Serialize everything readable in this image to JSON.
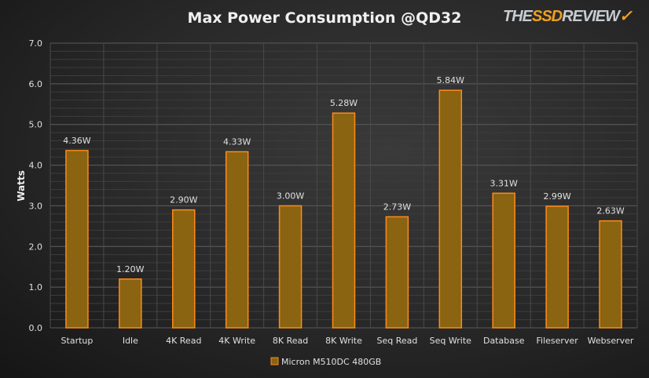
{
  "chart_data": {
    "type": "bar",
    "title": "Max Power Consumption @QD32",
    "ylabel": "Watts",
    "xlabel": "",
    "ylim": [
      0,
      7
    ],
    "yticks": [
      "0.0",
      "1.0",
      "2.0",
      "3.0",
      "4.0",
      "5.0",
      "6.0",
      "7.0"
    ],
    "categories": [
      "Startup",
      "Idle",
      "4K Read",
      "4K Write",
      "8K Read",
      "8K Write",
      "Seq Read",
      "Seq Write",
      "Database",
      "Fileserver",
      "Webserver"
    ],
    "series": [
      {
        "name": "Micron M510DC 480GB",
        "values": [
          4.36,
          1.2,
          2.9,
          4.33,
          3.0,
          5.28,
          2.73,
          5.84,
          3.31,
          2.99,
          2.63
        ],
        "labels": [
          "4.36W",
          "1.20W",
          "2.90W",
          "4.33W",
          "3.00W",
          "5.28W",
          "2.73W",
          "5.84W",
          "3.31W",
          "2.99W",
          "2.63W"
        ]
      }
    ],
    "legend": "bottom",
    "grid": true
  },
  "logo": {
    "a": "THE",
    "b": "SSD",
    "c": "REVIEW"
  },
  "colors": {
    "bar": "#8a6410",
    "edge": "#ff8a1a"
  }
}
